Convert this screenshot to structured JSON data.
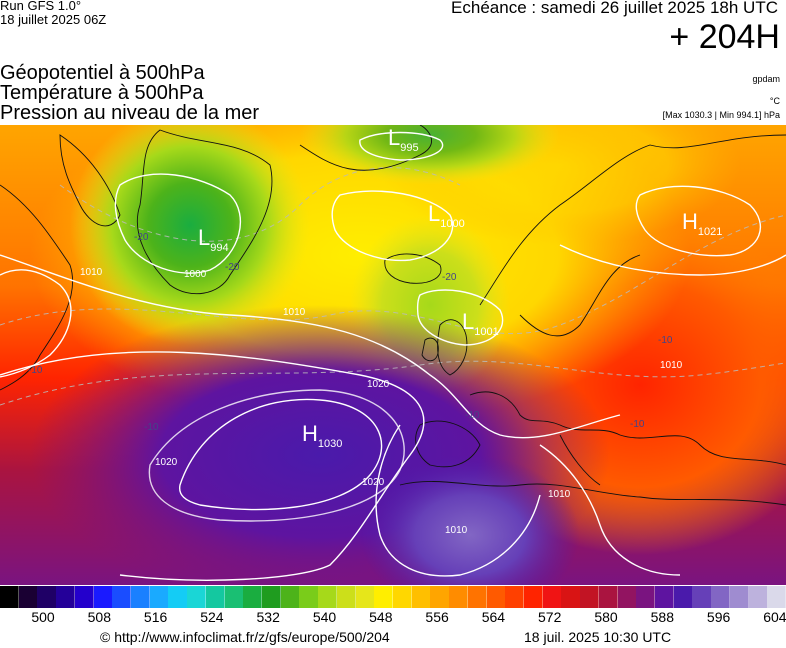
{
  "header": {
    "run": "Run GFS 1.0°",
    "run_date": "18 juillet 2025 06Z",
    "echeance": "Echéance : samedi 26 juillet 2025 18h UTC",
    "lead": "+ 204H"
  },
  "titles": [
    "Géopotentiel à 500hPa",
    "Température à 500hPa",
    "Pression au niveau de la mer"
  ],
  "units": {
    "geopot": "gpdam",
    "temp": "°C",
    "pressure": "[Max 1030.3 | Min 994.1] hPa"
  },
  "map": {
    "centers": [
      {
        "type": "L",
        "value": "995"
      },
      {
        "type": "L",
        "value": "994"
      },
      {
        "type": "L",
        "value": "1000"
      },
      {
        "type": "L",
        "value": "1001"
      },
      {
        "type": "H",
        "value": "1021"
      },
      {
        "type": "H",
        "value": "1030"
      }
    ],
    "isobar_labels": [
      "1010",
      "1010",
      "1020",
      "1020",
      "1020",
      "1010",
      "1010",
      "1000",
      "1010"
    ],
    "temp_labels": [
      "-20",
      "-20",
      "-20",
      "-10",
      "-10",
      "-10",
      "-10",
      "-10"
    ]
  },
  "colorscale": {
    "colors": [
      "#000000",
      "#1a0033",
      "#1f0066",
      "#240099",
      "#2400cc",
      "#1a1aff",
      "#1a4dff",
      "#1a80ff",
      "#1aaaff",
      "#14ccf5",
      "#1ad6d6",
      "#14c8a0",
      "#1abf73",
      "#1aad40",
      "#1f9c1f",
      "#4db31a",
      "#7acc1a",
      "#a6d91a",
      "#ccdf1a",
      "#e6e61a",
      "#ffee00",
      "#ffd700",
      "#ffbf00",
      "#ffa500",
      "#ff8c00",
      "#ff7300",
      "#ff5a00",
      "#ff4000",
      "#ff2400",
      "#f01414",
      "#d91414",
      "#c21424",
      "#aa1440",
      "#921461",
      "#7a1480",
      "#5e14a0",
      "#4a1aab",
      "#6640b8",
      "#8266c4",
      "#9f8cd0",
      "#bdb2dd",
      "#dad9ea"
    ],
    "ticks": [
      "500",
      "508",
      "516",
      "524",
      "532",
      "540",
      "548",
      "556",
      "564",
      "572",
      "580",
      "588",
      "596",
      "604"
    ]
  },
  "footer": {
    "url": "© http://www.infoclimat.fr/z/gfs/europe/500/204",
    "time": "18 juil. 2025 10:30 UTC"
  }
}
